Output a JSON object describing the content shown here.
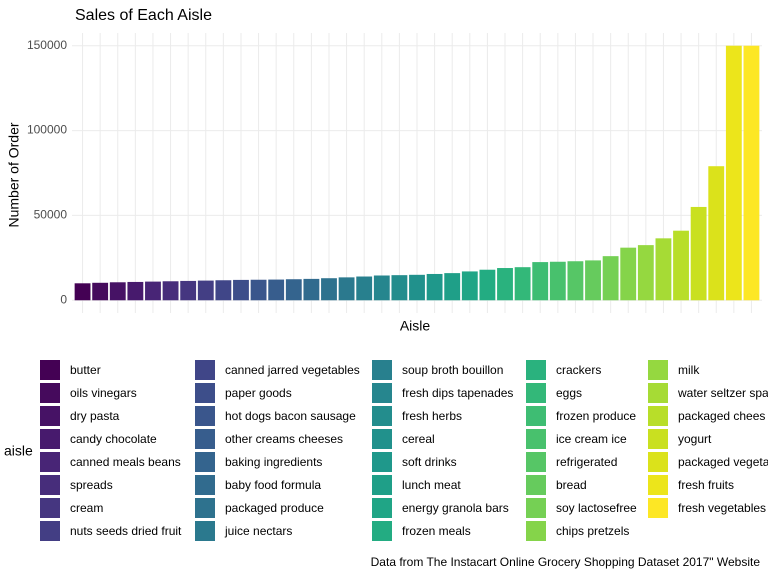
{
  "chart_data": {
    "type": "bar",
    "title": "Sales of Each Aisle",
    "x_label": "Aisle",
    "y_label": "Number of Order",
    "legend_title": "aisle",
    "caption": "Data from The Instacart Online Grocery Shopping Dataset 2017\" Website",
    "categories": [
      "butter",
      "oils vinegars",
      "dry pasta",
      "candy chocolate",
      "canned meals beans",
      "spreads",
      "cream",
      "nuts seeds dried fruit",
      "canned jarred vegetables",
      "paper goods",
      "hot dogs bacon sausage",
      "other creams cheeses",
      "baking ingredients",
      "baby food formula",
      "packaged produce",
      "juice nectars",
      "soup broth bouillon",
      "fresh dips tapenades",
      "fresh herbs",
      "cereal",
      "soft drinks",
      "lunch meat",
      "energy granola bars",
      "frozen meals",
      "crackers",
      "eggs",
      "frozen produce",
      "ice cream ice",
      "refrigerated",
      "bread",
      "soy lactosefree",
      "chips pretzels",
      "milk",
      "water seltzer spa",
      "packaged chees",
      "yogurt",
      "packaged vegeta",
      "fresh fruits",
      "fresh vegetables"
    ],
    "values": [
      10000,
      10300,
      10600,
      10800,
      11000,
      11200,
      11400,
      11600,
      11800,
      12000,
      12100,
      12200,
      12400,
      12600,
      13000,
      13500,
      14000,
      14600,
      14800,
      15000,
      15500,
      16000,
      17000,
      18000,
      19000,
      19500,
      22500,
      22700,
      23000,
      23500,
      26000,
      31000,
      32500,
      36500,
      41000,
      55000,
      79000,
      150000,
      150000
    ],
    "colors": [
      "#440154",
      "#450a5c",
      "#461265",
      "#471a6d",
      "#482576",
      "#472d7b",
      "#453680",
      "#433e84",
      "#404688",
      "#3d4e8a",
      "#3a568c",
      "#375d8d",
      "#34648e",
      "#316b8e",
      "#2e728e",
      "#2b798e",
      "#28808e",
      "#26868e",
      "#238d8d",
      "#21918c",
      "#1f988b",
      "#1f9f88",
      "#20a586",
      "#23ac82",
      "#2ab27e",
      "#33b879",
      "#3ebd73",
      "#48c16d",
      "#56c666",
      "#66cb5d",
      "#75d054",
      "#85d44a",
      "#95d840",
      "#a6db35",
      "#b8de29",
      "#c9e020",
      "#dbe21b",
      "#ece51b",
      "#fde725"
    ],
    "ylim": [
      -7500,
      157500
    ],
    "yticks": [
      0,
      50000,
      100000,
      150000
    ],
    "grid": true
  }
}
